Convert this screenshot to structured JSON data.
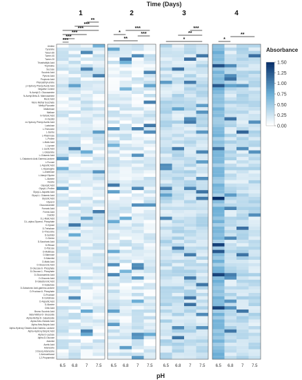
{
  "chart_data": {
    "type": "heatmap",
    "title": "Time (Days)",
    "xlabel": "pH",
    "ylabel": "",
    "panels": [
      "1",
      "2",
      "3",
      "4"
    ],
    "ph_levels": [
      "6.5",
      "6.8",
      "7",
      "7.5"
    ],
    "legend": {
      "title": "Absorbance",
      "ticks": [
        "1.50",
        "1.25",
        "1.00",
        "0.75",
        "0.50",
        "0.25",
        "0.00"
      ],
      "min": 0.0,
      "max": 1.5,
      "color_low": "#ffffff",
      "color_high": "#08306b",
      "placement": "right"
    },
    "rows": [
      "Uridine",
      "Tyramine",
      "Tween 80",
      "Tween 40",
      "Tween 20",
      "Tricarballylic Acid",
      "Thymidine",
      "Sucrose",
      "Succinic Acid",
      "Pyruvic Acid",
      "Propionic Acid",
      "Phenylethyl-amine",
      "p-Hydroxy Phenyl Acetic Acid",
      "Negative Control",
      "N-Acetyl-D- Glucosamine",
      "N-Acetyl-Beta-D- Mannosamine",
      "Mucic Acid",
      "Mono Methyl Succinate",
      "Methyl Pyruvate",
      "Maltotriose",
      "Maltose",
      "m-Tartaric Acid",
      "m-Inositol",
      "m-Hydroxy Phenyl Acetic Acid",
      "Lactulose",
      "L-Threonine",
      "L-Serine",
      "L-Rhamnose",
      "L-Proline",
      "L-Malic Acid",
      "L-Lyxose",
      "L-Lactic Acid",
      "L-Glutamine",
      "L-Glutamic Acid",
      "L-Galactonic Acid-Gamma-Lactone",
      "L-Fucose",
      "L-Aspartic Acid",
      "L-Asparagine",
      "L-Arabinose",
      "L-Alanyl-Glycine",
      "L-Alanine",
      "Inosine",
      "Glyoxylic Acid",
      "Glycyl-L-Proline",
      "Glycyl-L-Aspartic Acid",
      "Glycyl-L- Glutamic Acid",
      "Glycolic Acid",
      "Glycerol",
      "Glucuronamide",
      "Fumaric Acid",
      "Formic Acid",
      "Dulcitol",
      "D,L-Malic Acid",
      "D,L-alpha-Glycerol- Phosphate",
      "D-Xylose",
      "D-Trehalose",
      "D-Threonine",
      "D-Sorbitol",
      "D-Serine",
      "D-Saccharic Acid",
      "D-Ribose",
      "D-Psicose",
      "D-Melibiose",
      "D-Mannose",
      "D-Mannitol",
      "D-Malic Acid",
      "D-Glucuronic Acid",
      "D-Glucose-6- Phosphate",
      "D-Glucose-1- Phosphate",
      "D-Glucosaminic Acid",
      "D-Gluconic Acid",
      "D-Galacturonic Acid",
      "D-Galactose",
      "D-Galactonic Acid-gamma-Lactone",
      "D-Fructose-6- Phosphate",
      "D-Fructose",
      "D-Cellobiose",
      "D-Aspartic Acid",
      "D-Alanine",
      "Citric Acid",
      "Bromo Succinic Acid",
      "Beta-Methyl-D- Glucoside",
      "Alpha-Methyl-D- Galactoside",
      "Alpha-Keto-Glutaric Acid",
      "Alpha-Keto-Butyric Acid",
      "Alpha-Hydroxy Glutaric Acid-Gamma- Lactone",
      "Alpha-Hydroxy Butyric Acid",
      "Alpha-D-Lactose",
      "Alpha-D-Glucose",
      "Adonitol",
      "Acetic Acid",
      "Adenosine",
      "2-Deoxy Adenosine",
      "2-Aminoethanol",
      "1,2-Propanediol"
    ],
    "significance": [
      {
        "panel": "1",
        "labels": [
          "**",
          "***",
          "***",
          "***",
          "***",
          "***"
        ]
      },
      {
        "panel": "2",
        "labels": [
          "*",
          "***",
          "***",
          "**"
        ]
      },
      {
        "panel": "3",
        "labels": [
          "***",
          "**",
          "*"
        ]
      },
      {
        "panel": "4",
        "labels": [
          "*",
          "**"
        ]
      }
    ]
  }
}
